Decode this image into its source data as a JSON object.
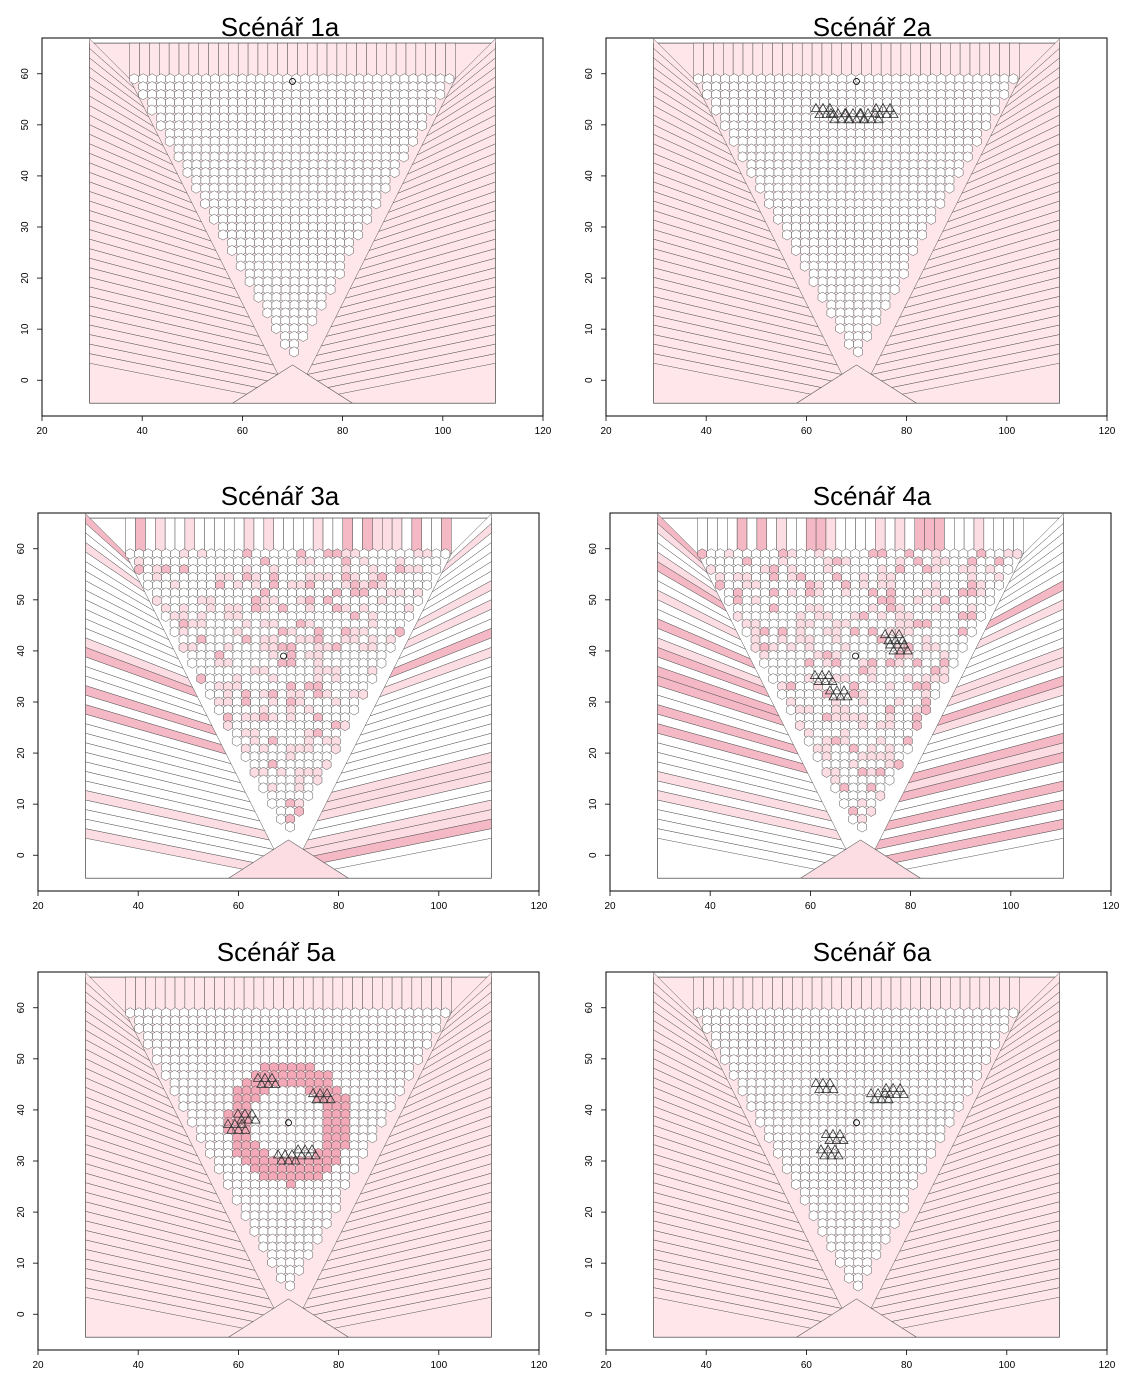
{
  "figure": {
    "xlim": [
      20,
      120
    ],
    "ylim": [
      -7,
      67
    ],
    "xticks": [
      20,
      40,
      60,
      80,
      100,
      120
    ],
    "yticks": [
      0,
      10,
      20,
      30,
      40,
      50,
      60
    ],
    "domain": {
      "x": [
        29.5,
        110.5
      ],
      "y": [
        -4.5,
        66
      ]
    },
    "hex_region": {
      "apex": [
        70,
        3
      ],
      "top_y": 59,
      "top_x": [
        37.5,
        102.5
      ]
    },
    "colors": {
      "background": "#ffe6ea",
      "cell_fill": "#ffffff",
      "line": "#555555",
      "accent": "#f4a9b8"
    }
  },
  "panels": [
    {
      "id": "1a",
      "title": "Scénář 1a",
      "fill": "#ffe6ea",
      "variation": 0.0,
      "source": [
        70,
        58.5
      ],
      "obstacles": [],
      "halo": null,
      "voids": []
    },
    {
      "id": "2a",
      "title": "Scénář 2a",
      "fill": "#ffe6ea",
      "variation": 0.0,
      "source": [
        70,
        58.5
      ],
      "obstacles": [
        [
          64,
          52
        ],
        [
          67,
          51
        ],
        [
          70,
          51
        ],
        [
          73,
          51
        ],
        [
          76,
          52
        ]
      ],
      "halo": null,
      "voids": []
    },
    {
      "id": "3a",
      "title": "Scénář 3a",
      "fill": "#ffffff",
      "variation": 0.35,
      "source": [
        69,
        39
      ],
      "obstacles": [],
      "halo": null,
      "voids": []
    },
    {
      "id": "4a",
      "title": "Scénář 4a",
      "fill": "#ffffff",
      "variation": 0.35,
      "source": [
        69,
        39
      ],
      "obstacles": [
        [
          77,
          42
        ],
        [
          78,
          40
        ],
        [
          63,
          34
        ],
        [
          66,
          31
        ]
      ],
      "halo": null,
      "voids": []
    },
    {
      "id": "5a",
      "title": "Scénář 5a",
      "fill": "#ffe6ea",
      "variation": 0.0,
      "source": [
        70,
        37.5
      ],
      "obstacles": [
        [
          62,
          38
        ],
        [
          66,
          45
        ],
        [
          77,
          42
        ],
        [
          74,
          31
        ],
        [
          70,
          30
        ],
        [
          60,
          36
        ]
      ],
      "halo": [
        70,
        37.5
      ],
      "voids": []
    },
    {
      "id": "6a",
      "title": "Scénář 6a",
      "fill": "#ffe6ea",
      "variation": 0.0,
      "source": [
        70,
        37.5
      ],
      "obstacles": [
        [
          65,
          31
        ],
        [
          66,
          34
        ],
        [
          78,
          43
        ],
        [
          75,
          42
        ],
        [
          64,
          44
        ]
      ],
      "halo": null,
      "voids": [
        [
          70,
          37.5
        ]
      ]
    }
  ]
}
